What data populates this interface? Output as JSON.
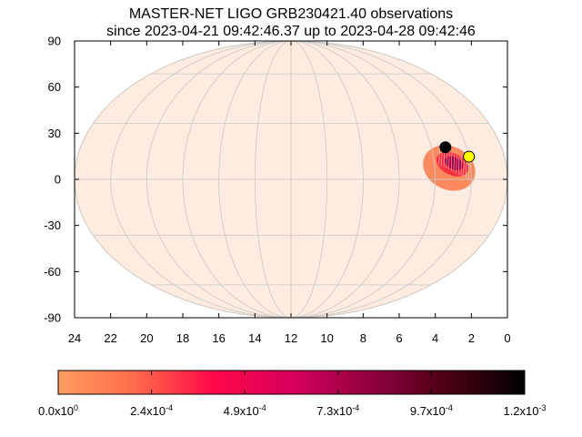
{
  "chart_data": {
    "type": "heatmap",
    "title_line1": "MASTER-NET LIGO GRB230421.40 observations",
    "title_line2": "since 2023-04-21 09:42:46.37 up to 2023-04-28 09:42:46",
    "projection": "mollweide",
    "x_axis": {
      "label": "",
      "range": [
        24,
        0
      ],
      "ticks": [
        24,
        22,
        20,
        18,
        16,
        14,
        12,
        10,
        8,
        6,
        4,
        2,
        0
      ]
    },
    "y_axis": {
      "label": "",
      "range": [
        -90,
        90
      ],
      "ticks": [
        90,
        60,
        30,
        0,
        -30,
        -60,
        -90
      ]
    },
    "grid": true,
    "meridians_hours": [
      24,
      22,
      20,
      18,
      16,
      14,
      12,
      10,
      8,
      6,
      4,
      2,
      0
    ],
    "parallels_deg": [
      -60,
      -30,
      0,
      30,
      60
    ],
    "background_color": "#fdecdf",
    "probability_region": {
      "outer": {
        "center": [
          3.2,
          6
        ],
        "extent_ra_hours": 1.5,
        "extent_dec_deg": 14,
        "tilt_deg": 26,
        "color": "#fd8a5f"
      },
      "inner": {
        "center": [
          3.0,
          8
        ],
        "extent_ra_hours": 0.95,
        "extent_dec_deg": 7,
        "tilt_deg": 26,
        "color": "#f8303f"
      },
      "core": {
        "center": [
          2.9,
          8.5
        ],
        "extent_ra_hours": 0.55,
        "extent_dec_deg": 4,
        "tilt_deg": 26,
        "color": "#b0003f"
      }
    },
    "markers": [
      {
        "name": "black-point",
        "ra_hours": 3.2,
        "dec_deg": 17,
        "color": "#000000"
      },
      {
        "name": "yellow-point",
        "ra_hours": 2.0,
        "dec_deg": 12,
        "color": "#ffff00"
      }
    ],
    "colorbar": {
      "stops": [
        "#ff9c60",
        "#ff6a4a",
        "#ff0848",
        "#d8005c",
        "#920040",
        "#4c0015",
        "#000000"
      ],
      "tick_labels": [
        {
          "mantissa": "0.0x10",
          "exponent": "0"
        },
        {
          "mantissa": "2.4x10",
          "exponent": "-4"
        },
        {
          "mantissa": "4.9x10",
          "exponent": "-4"
        },
        {
          "mantissa": "7.3x10",
          "exponent": "-4"
        },
        {
          "mantissa": "9.7x10",
          "exponent": "-4"
        },
        {
          "mantissa": "1.2x10",
          "exponent": "-3"
        }
      ],
      "range": [
        0,
        0.0012
      ]
    }
  }
}
